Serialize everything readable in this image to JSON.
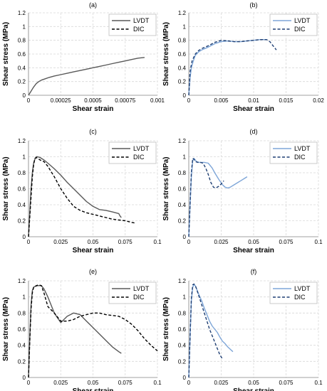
{
  "chart_data": [
    {
      "type": "line",
      "title": "(a)",
      "xlabel": "Shear strain",
      "ylabel": "Shear stress (MPa)",
      "xlim": [
        0,
        0.001
      ],
      "ylim": [
        0,
        1.2
      ],
      "xticks": [
        "0",
        "0.00025",
        "0.0005",
        "0.00075",
        "0.001"
      ],
      "yticks": [
        "0",
        "0.2",
        "0.4",
        "0.6",
        "0.8",
        "1",
        "1.2"
      ],
      "grid": true,
      "legend_position": "top-right",
      "series": [
        {
          "name": "LVDT",
          "color": "#595959",
          "dash": "solid",
          "x": [
            0,
            2e-05,
            4e-05,
            6e-05,
            8e-05,
            0.0001,
            0.00013,
            0.00016,
            0.0002,
            0.00025,
            0.0003,
            0.00035,
            0.0004,
            0.00045,
            0.0005,
            0.00055,
            0.0006,
            0.00065,
            0.0007,
            0.00075,
            0.0008,
            0.00085,
            0.0009
          ],
          "y": [
            0,
            0.06,
            0.12,
            0.17,
            0.2,
            0.22,
            0.24,
            0.26,
            0.28,
            0.3,
            0.32,
            0.34,
            0.36,
            0.38,
            0.4,
            0.42,
            0.44,
            0.46,
            0.48,
            0.5,
            0.52,
            0.54,
            0.55
          ]
        },
        {
          "name": "DIC",
          "color": "#000000",
          "dash": "dashed",
          "x": [],
          "y": []
        }
      ]
    },
    {
      "type": "line",
      "title": "(b)",
      "xlabel": "Shear strain",
      "ylabel": "Shear stress (MPa)",
      "xlim": [
        0,
        0.02
      ],
      "ylim": [
        0,
        1.2
      ],
      "xticks": [
        "0",
        "0.005",
        "0.01",
        "0.015",
        "0.02"
      ],
      "yticks": [
        "0",
        "0.2",
        "0.4",
        "0.6",
        "0.8",
        "1",
        "1.2"
      ],
      "grid": true,
      "legend_position": "top-right",
      "series": [
        {
          "name": "LVDT",
          "color": "#7ea6d8",
          "dash": "solid",
          "x": [
            0,
            0.0002,
            0.0004,
            0.0007,
            0.001,
            0.0015,
            0.002,
            0.003,
            0.004,
            0.005,
            0.006,
            0.007,
            0.008,
            0.009,
            0.01,
            0.011,
            0.012
          ],
          "y": [
            0,
            0.25,
            0.4,
            0.5,
            0.58,
            0.63,
            0.66,
            0.7,
            0.75,
            0.78,
            0.79,
            0.78,
            0.78,
            0.79,
            0.8,
            0.81,
            0.81
          ]
        },
        {
          "name": "DIC",
          "color": "#1f3f73",
          "dash": "dashed",
          "x": [
            0,
            0.0002,
            0.0005,
            0.001,
            0.0015,
            0.002,
            0.003,
            0.004,
            0.005,
            0.006,
            0.007,
            0.008,
            0.009,
            0.01,
            0.011,
            0.012,
            0.0125,
            0.013,
            0.0135
          ],
          "y": [
            0,
            0.35,
            0.5,
            0.6,
            0.65,
            0.68,
            0.72,
            0.77,
            0.8,
            0.79,
            0.78,
            0.78,
            0.79,
            0.8,
            0.81,
            0.81,
            0.78,
            0.72,
            0.66
          ]
        }
      ]
    },
    {
      "type": "line",
      "title": "(c)",
      "xlabel": "Shear strain",
      "ylabel": "Shear stress (MPa)",
      "xlim": [
        0,
        0.1
      ],
      "ylim": [
        0,
        1.2
      ],
      "xticks": [
        "0",
        "0.025",
        "0.05",
        "0.075",
        "0.1"
      ],
      "yticks": [
        "0",
        "0.2",
        "0.4",
        "0.6",
        "0.8",
        "1",
        "1.2"
      ],
      "grid": true,
      "legend_position": "top-right",
      "series": [
        {
          "name": "LVDT",
          "color": "#595959",
          "dash": "solid",
          "x": [
            0,
            0.001,
            0.002,
            0.003,
            0.004,
            0.005,
            0.006,
            0.007,
            0.009,
            0.012,
            0.015,
            0.02,
            0.025,
            0.03,
            0.035,
            0.04,
            0.045,
            0.05,
            0.055,
            0.06,
            0.065,
            0.07,
            0.071,
            0.072
          ],
          "y": [
            0,
            0.3,
            0.6,
            0.8,
            0.92,
            0.97,
            1.0,
            1.0,
            0.99,
            0.96,
            0.92,
            0.85,
            0.77,
            0.68,
            0.6,
            0.52,
            0.44,
            0.38,
            0.34,
            0.33,
            0.31,
            0.29,
            0.26,
            0.24
          ]
        },
        {
          "name": "DIC",
          "color": "#000000",
          "dash": "dashed",
          "x": [
            0,
            0.001,
            0.002,
            0.003,
            0.004,
            0.005,
            0.006,
            0.008,
            0.01,
            0.012,
            0.015,
            0.02,
            0.025,
            0.03,
            0.035,
            0.04,
            0.045,
            0.05,
            0.055,
            0.06,
            0.065,
            0.07,
            0.075,
            0.08,
            0.083
          ],
          "y": [
            0,
            0.25,
            0.5,
            0.75,
            0.9,
            0.98,
            0.99,
            0.97,
            0.95,
            0.94,
            0.88,
            0.75,
            0.6,
            0.48,
            0.38,
            0.33,
            0.3,
            0.28,
            0.26,
            0.24,
            0.22,
            0.21,
            0.2,
            0.18,
            0.17
          ]
        }
      ]
    },
    {
      "type": "line",
      "title": "(d)",
      "xlabel": "Shear strain",
      "ylabel": "Shear stress (MPa)",
      "xlim": [
        0,
        0.1
      ],
      "ylim": [
        0,
        1.2
      ],
      "xticks": [
        "0",
        "0.025",
        "0.05",
        "0.075",
        "0.1"
      ],
      "yticks": [
        "0",
        "0.2",
        "0.4",
        "0.6",
        "0.8",
        "1",
        "1.2"
      ],
      "grid": true,
      "legend_position": "top-right",
      "series": [
        {
          "name": "LVDT",
          "color": "#7ea6d8",
          "dash": "solid",
          "x": [
            0,
            0.001,
            0.002,
            0.003,
            0.004,
            0.005,
            0.006,
            0.008,
            0.01,
            0.012,
            0.015,
            0.018,
            0.02,
            0.023,
            0.026,
            0.028,
            0.03,
            0.032,
            0.035,
            0.038,
            0.04,
            0.043,
            0.045
          ],
          "y": [
            0,
            0.4,
            0.75,
            0.95,
            0.98,
            0.96,
            0.94,
            0.93,
            0.93,
            0.93,
            0.92,
            0.86,
            0.8,
            0.72,
            0.65,
            0.62,
            0.61,
            0.62,
            0.65,
            0.68,
            0.7,
            0.73,
            0.75
          ]
        },
        {
          "name": "DIC",
          "color": "#1f3f73",
          "dash": "dashed",
          "x": [
            0,
            0.001,
            0.002,
            0.003,
            0.004,
            0.005,
            0.007,
            0.009,
            0.011,
            0.013,
            0.015,
            0.017,
            0.019,
            0.021,
            0.023,
            0.025,
            0.027
          ],
          "y": [
            0,
            0.4,
            0.8,
            0.98,
            0.97,
            0.94,
            0.93,
            0.93,
            0.92,
            0.86,
            0.78,
            0.68,
            0.62,
            0.61,
            0.63,
            0.66,
            0.7
          ]
        }
      ]
    },
    {
      "type": "line",
      "title": "(e)",
      "xlabel": "Shear strain",
      "ylabel": "Shear stress (MPa)",
      "xlim": [
        0,
        0.1
      ],
      "ylim": [
        0,
        1.2
      ],
      "xticks": [
        "0",
        "0.025",
        "0.05",
        "0.075",
        "0.1"
      ],
      "yticks": [
        "0",
        "0.2",
        "0.4",
        "0.6",
        "0.8",
        "1",
        "1.2"
      ],
      "grid": true,
      "legend_position": "top-right",
      "series": [
        {
          "name": "LVDT",
          "color": "#595959",
          "dash": "solid",
          "x": [
            0,
            0.001,
            0.002,
            0.003,
            0.004,
            0.005,
            0.007,
            0.01,
            0.012,
            0.015,
            0.018,
            0.02,
            0.025,
            0.03,
            0.035,
            0.04,
            0.045,
            0.05,
            0.055,
            0.06,
            0.065,
            0.07,
            0.072
          ],
          "y": [
            0,
            0.5,
            0.9,
            1.08,
            1.12,
            1.13,
            1.14,
            1.14,
            1.1,
            1.0,
            0.88,
            0.8,
            0.68,
            0.76,
            0.8,
            0.78,
            0.7,
            0.62,
            0.54,
            0.46,
            0.38,
            0.32,
            0.3
          ]
        },
        {
          "name": "DIC",
          "color": "#000000",
          "dash": "dashed",
          "x": [
            0,
            0.001,
            0.002,
            0.003,
            0.004,
            0.006,
            0.008,
            0.01,
            0.012,
            0.015,
            0.02,
            0.025,
            0.03,
            0.035,
            0.04,
            0.045,
            0.05,
            0.055,
            0.06,
            0.065,
            0.07,
            0.075,
            0.08,
            0.085,
            0.09,
            0.095,
            0.1
          ],
          "y": [
            0,
            0.45,
            0.85,
            1.05,
            1.12,
            1.14,
            1.15,
            1.14,
            1.05,
            0.88,
            0.8,
            0.7,
            0.7,
            0.72,
            0.76,
            0.78,
            0.8,
            0.8,
            0.78,
            0.77,
            0.76,
            0.72,
            0.66,
            0.58,
            0.48,
            0.4,
            0.33
          ]
        }
      ]
    },
    {
      "type": "line",
      "title": "(f)",
      "xlabel": "Shear strain",
      "ylabel": "Shear stress (MPa)",
      "xlim": [
        0,
        0.1
      ],
      "ylim": [
        0,
        1.2
      ],
      "xticks": [
        "0",
        "0.025",
        "0.05",
        "0.075",
        "0.1"
      ],
      "yticks": [
        "0",
        "0.2",
        "0.4",
        "0.6",
        "0.8",
        "1",
        "1.2"
      ],
      "grid": true,
      "legend_position": "top-right",
      "series": [
        {
          "name": "LVDT",
          "color": "#7ea6d8",
          "dash": "solid",
          "x": [
            0,
            0.001,
            0.002,
            0.003,
            0.004,
            0.005,
            0.006,
            0.008,
            0.01,
            0.012,
            0.014,
            0.016,
            0.018,
            0.02,
            0.022,
            0.024,
            0.026,
            0.028,
            0.03,
            0.032,
            0.034
          ],
          "y": [
            0,
            0.5,
            0.95,
            1.12,
            1.15,
            1.14,
            1.1,
            1.02,
            0.95,
            0.86,
            0.78,
            0.7,
            0.64,
            0.6,
            0.56,
            0.5,
            0.45,
            0.42,
            0.38,
            0.35,
            0.32
          ]
        },
        {
          "name": "DIC",
          "color": "#1f3f73",
          "dash": "dashed",
          "x": [
            0,
            0.001,
            0.002,
            0.003,
            0.004,
            0.005,
            0.006,
            0.007,
            0.008,
            0.01,
            0.012,
            0.014,
            0.016,
            0.018,
            0.02,
            0.022,
            0.024,
            0.026
          ],
          "y": [
            0,
            0.5,
            0.98,
            1.15,
            1.16,
            1.14,
            1.1,
            1.05,
            1.0,
            0.9,
            0.8,
            0.7,
            0.6,
            0.52,
            0.44,
            0.36,
            0.28,
            0.23
          ]
        }
      ]
    }
  ]
}
